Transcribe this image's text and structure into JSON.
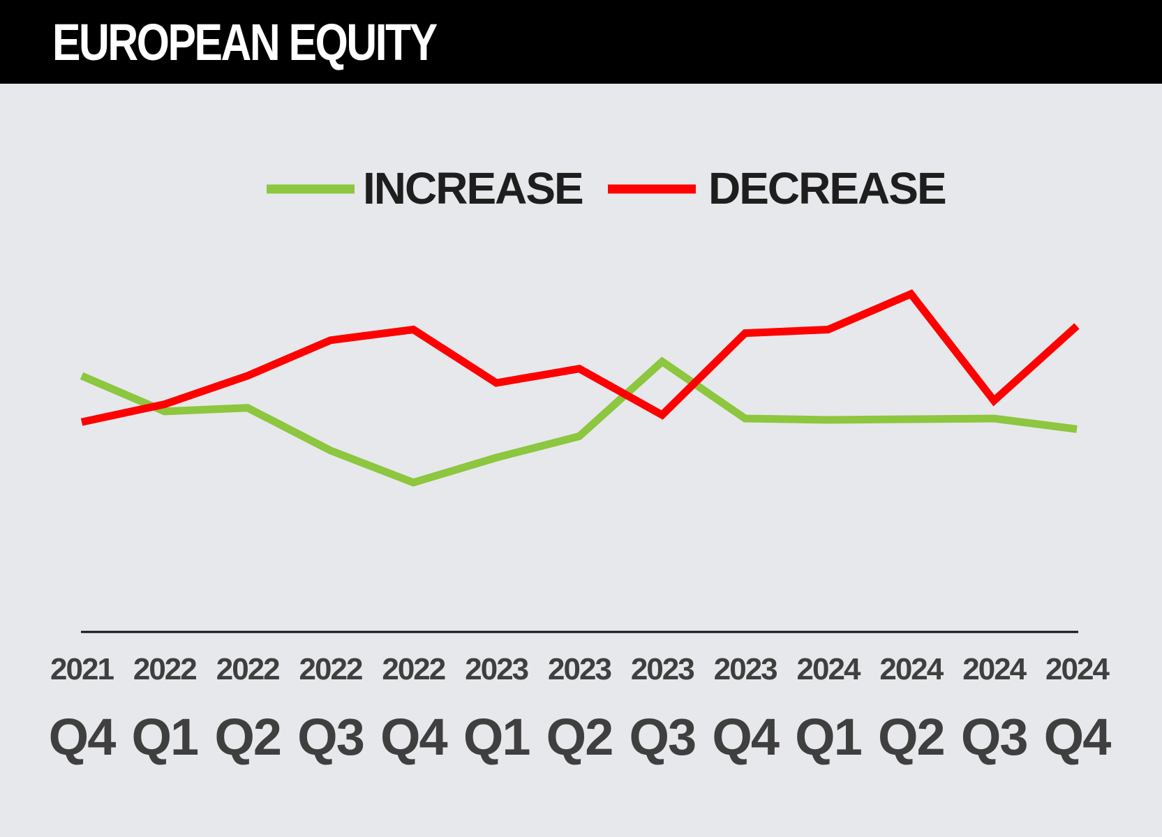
{
  "header": {
    "title": "EUROPEAN EQUITY"
  },
  "chart_data": {
    "type": "line",
    "title": "EUROPEAN EQUITY",
    "categories": [
      {
        "year": "2021",
        "quarter": "Q4"
      },
      {
        "year": "2022",
        "quarter": "Q1"
      },
      {
        "year": "2022",
        "quarter": "Q2"
      },
      {
        "year": "2022",
        "quarter": "Q3"
      },
      {
        "year": "2022",
        "quarter": "Q4"
      },
      {
        "year": "2023",
        "quarter": "Q1"
      },
      {
        "year": "2023",
        "quarter": "Q2"
      },
      {
        "year": "2023",
        "quarter": "Q3"
      },
      {
        "year": "2023",
        "quarter": "Q4"
      },
      {
        "year": "2024",
        "quarter": "Q1"
      },
      {
        "year": "2024",
        "quarter": "Q2"
      },
      {
        "year": "2024",
        "quarter": "Q3"
      },
      {
        "year": "2024",
        "quarter": "Q4"
      }
    ],
    "series": [
      {
        "name": "INCREASE",
        "color": "#8dc63f",
        "values": [
          36,
          31,
          31.5,
          25.5,
          21,
          24.5,
          27.5,
          38,
          30,
          29.8,
          29.9,
          30,
          28.5
        ]
      },
      {
        "name": "DECREASE",
        "color": "#ff0000",
        "values": [
          29.5,
          32,
          36,
          41,
          42.5,
          35,
          37,
          30.5,
          42,
          42.5,
          47.5,
          32.5,
          43
        ]
      }
    ],
    "ylim": [
      0,
      80
    ],
    "xlabel": "",
    "ylabel": "",
    "grid": false,
    "legend_position": "top-center"
  }
}
